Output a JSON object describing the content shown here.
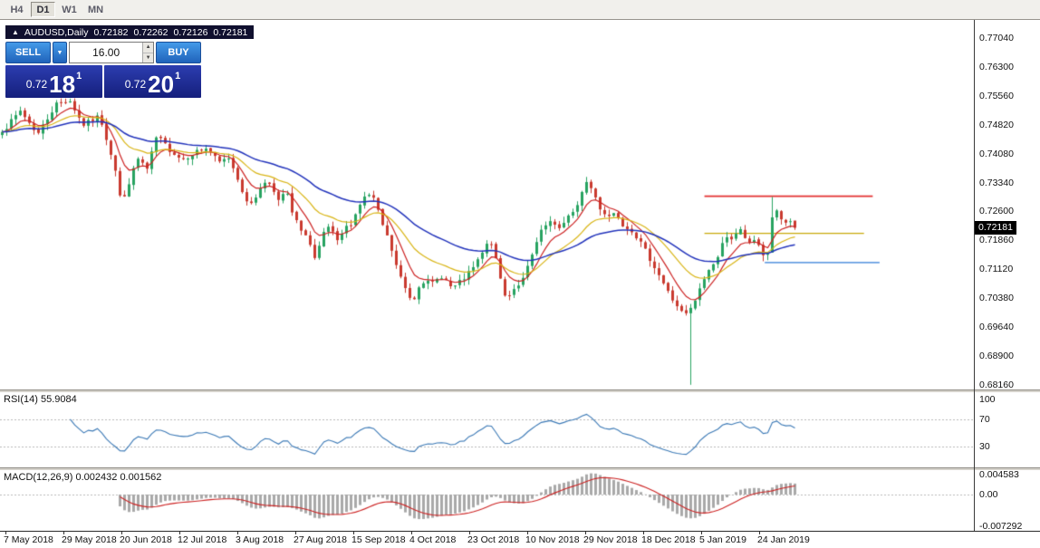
{
  "toolbar": {
    "timeframes": [
      {
        "label": "H4",
        "active": false
      },
      {
        "label": "D1",
        "active": true
      },
      {
        "label": "W1",
        "active": false
      },
      {
        "label": "MN",
        "active": false
      }
    ]
  },
  "chart": {
    "symbol": "AUDUSD,Daily",
    "ohlc": {
      "open": "0.72182",
      "high": "0.72262",
      "low": "0.72126",
      "close": "0.72181"
    }
  },
  "icons": {
    "collapse": "▲",
    "dropdown": "▼",
    "spin_up": "▲",
    "spin_down": "▼"
  },
  "one_click": {
    "sell_label": "SELL",
    "buy_label": "BUY",
    "volume": "16.00",
    "bid": {
      "prefix": "0.72",
      "big": "18",
      "sup": "1"
    },
    "ask": {
      "prefix": "0.72",
      "big": "20",
      "sup": "1"
    }
  },
  "price_scale": {
    "ticks": [
      "0.77040",
      "0.76300",
      "0.75560",
      "0.74820",
      "0.74080",
      "0.73340",
      "0.72600",
      "0.71860",
      "0.71120",
      "0.70380",
      "0.69640",
      "0.68900",
      "0.68160"
    ],
    "current": "0.72181"
  },
  "rsi": {
    "name": "RSI(14)",
    "value": "55.9084",
    "levels": [
      "100",
      "70",
      "30"
    ]
  },
  "macd": {
    "name": "MACD(12,26,9)",
    "value": "0.002432",
    "signal_value": "0.001562",
    "levels": [
      "0.004583",
      "0.00",
      "-0.007292"
    ]
  },
  "time_axis": {
    "labels": [
      "7 May 2018",
      "29 May 2018",
      "20 Jun 2018",
      "12 Jul 2018",
      "3 Aug 2018",
      "27 Aug 2018",
      "15 Sep 2018",
      "4 Oct 2018",
      "23 Oct 2018",
      "10 Nov 2018",
      "29 Nov 2018",
      "18 Dec 2018",
      "5 Jan 2019",
      "24 Jan 2019"
    ]
  },
  "colors": {
    "bull": "#27a361",
    "bear": "#c93a2f",
    "ma_red": "#cc2222",
    "ma_yellow": "#d8b414",
    "ma_blue": "#2233bb",
    "level_red": "#e43030",
    "level_yellow": "#c9a90a",
    "level_blue": "#2f7cd8",
    "rsi_line": "#3a78b5",
    "macd_hist": "#a9a9a9",
    "macd_signal": "#cc2222",
    "grid_dotted": "#b8b8b8",
    "accent_button_blue": "#2e7bd8",
    "quote_panel_navy": "#1b2a96"
  },
  "chart_data": {
    "type": "candlestick",
    "symbol": "AUDUSD",
    "timeframe": "Daily",
    "title": "AUDUSD,Daily 0.72182 0.72262 0.72126 0.72181",
    "current_ohlc": {
      "open": 0.72182,
      "high": 0.72262,
      "low": 0.72126,
      "close": 0.72181
    },
    "visible_price_range": [
      0.6804,
      0.7748
    ],
    "price_axis": {
      "top_tick": 0.7704,
      "tick_step": 0.0074,
      "tick_count": 13
    },
    "candle_count": 176,
    "candles_end_fraction": 0.82,
    "close_path_anchors": [
      [
        0.0,
        0.747
      ],
      [
        0.006,
        0.7477
      ],
      [
        0.023,
        0.7518
      ],
      [
        0.045,
        0.7458
      ],
      [
        0.068,
        0.7535
      ],
      [
        0.085,
        0.7546
      ],
      [
        0.102,
        0.7481
      ],
      [
        0.123,
        0.7504
      ],
      [
        0.142,
        0.7377
      ],
      [
        0.151,
        0.7272
      ],
      [
        0.161,
        0.7342
      ],
      [
        0.173,
        0.7402
      ],
      [
        0.182,
        0.7361
      ],
      [
        0.195,
        0.7453
      ],
      [
        0.211,
        0.7419
      ],
      [
        0.227,
        0.7393
      ],
      [
        0.243,
        0.7412
      ],
      [
        0.259,
        0.7423
      ],
      [
        0.273,
        0.7384
      ],
      [
        0.286,
        0.7398
      ],
      [
        0.299,
        0.7337
      ],
      [
        0.31,
        0.7272
      ],
      [
        0.322,
        0.7305
      ],
      [
        0.335,
        0.7347
      ],
      [
        0.348,
        0.7282
      ],
      [
        0.358,
        0.7317
      ],
      [
        0.367,
        0.7245
      ],
      [
        0.376,
        0.7219
      ],
      [
        0.386,
        0.7189
      ],
      [
        0.395,
        0.7131
      ],
      [
        0.405,
        0.7201
      ],
      [
        0.413,
        0.7224
      ],
      [
        0.422,
        0.7177
      ],
      [
        0.431,
        0.7212
      ],
      [
        0.442,
        0.7235
      ],
      [
        0.452,
        0.7282
      ],
      [
        0.461,
        0.7305
      ],
      [
        0.469,
        0.7291
      ],
      [
        0.478,
        0.7235
      ],
      [
        0.489,
        0.7177
      ],
      [
        0.499,
        0.7108
      ],
      [
        0.509,
        0.7061
      ],
      [
        0.518,
        0.7027
      ],
      [
        0.528,
        0.7085
      ],
      [
        0.541,
        0.7073
      ],
      [
        0.555,
        0.7096
      ],
      [
        0.568,
        0.7061
      ],
      [
        0.581,
        0.7085
      ],
      [
        0.592,
        0.7108
      ],
      [
        0.603,
        0.7143
      ],
      [
        0.616,
        0.7189
      ],
      [
        0.626,
        0.7108
      ],
      [
        0.635,
        0.7038
      ],
      [
        0.645,
        0.7061
      ],
      [
        0.657,
        0.7085
      ],
      [
        0.668,
        0.7143
      ],
      [
        0.678,
        0.7201
      ],
      [
        0.69,
        0.7235
      ],
      [
        0.701,
        0.7212
      ],
      [
        0.713,
        0.7247
      ],
      [
        0.724,
        0.7259
      ],
      [
        0.735,
        0.734
      ],
      [
        0.744,
        0.7317
      ],
      [
        0.754,
        0.727
      ],
      [
        0.764,
        0.7247
      ],
      [
        0.774,
        0.7259
      ],
      [
        0.784,
        0.7224
      ],
      [
        0.795,
        0.7212
      ],
      [
        0.806,
        0.7177
      ],
      [
        0.816,
        0.7143
      ],
      [
        0.826,
        0.7108
      ],
      [
        0.835,
        0.7073
      ],
      [
        0.844,
        0.7038
      ],
      [
        0.853,
        0.7015
      ],
      [
        0.86,
        0.6992
      ],
      [
        0.867,
        0.7003
      ],
      [
        0.876,
        0.7038
      ],
      [
        0.885,
        0.7085
      ],
      [
        0.894,
        0.7119
      ],
      [
        0.903,
        0.7143
      ],
      [
        0.913,
        0.7201
      ],
      [
        0.922,
        0.7189
      ],
      [
        0.931,
        0.7212
      ],
      [
        0.94,
        0.7177
      ],
      [
        0.949,
        0.7189
      ],
      [
        0.958,
        0.7154
      ],
      [
        0.965,
        0.7143
      ],
      [
        0.973,
        0.727
      ],
      [
        0.981,
        0.7247
      ],
      [
        0.988,
        0.7224
      ],
      [
        0.994,
        0.7235
      ],
      [
        1.0,
        0.72181
      ]
    ],
    "events": {
      "flash_crash": {
        "index": 152,
        "low": 0.6816
      },
      "breakout_spike": {
        "index": 170,
        "high": 0.7297
      }
    },
    "horizontal_levels": [
      {
        "price": 0.73,
        "color_key": "level_red",
        "x_from": 0.724,
        "x_to": 0.897
      },
      {
        "price": 0.7205,
        "color_key": "level_yellow",
        "x_from": 0.724,
        "x_to": 0.888
      },
      {
        "price": 0.713,
        "color_key": "level_blue",
        "x_from": 0.786,
        "x_to": 0.904
      }
    ],
    "moving_averages": [
      {
        "period": 7,
        "color_key": "ma_red"
      },
      {
        "period": 18,
        "color_key": "ma_yellow"
      },
      {
        "period": 40,
        "color_key": "ma_blue"
      }
    ],
    "indicators": {
      "rsi": {
        "period": 14,
        "current": 55.9084,
        "scale": [
          0,
          100
        ],
        "marked_levels": [
          100,
          70,
          30
        ]
      },
      "macd": {
        "fast": 12,
        "slow": 26,
        "signal": 9,
        "current": 0.002432,
        "signal_current": 0.001562,
        "scale_max": 0.004583,
        "scale_min": -0.007292
      }
    }
  }
}
